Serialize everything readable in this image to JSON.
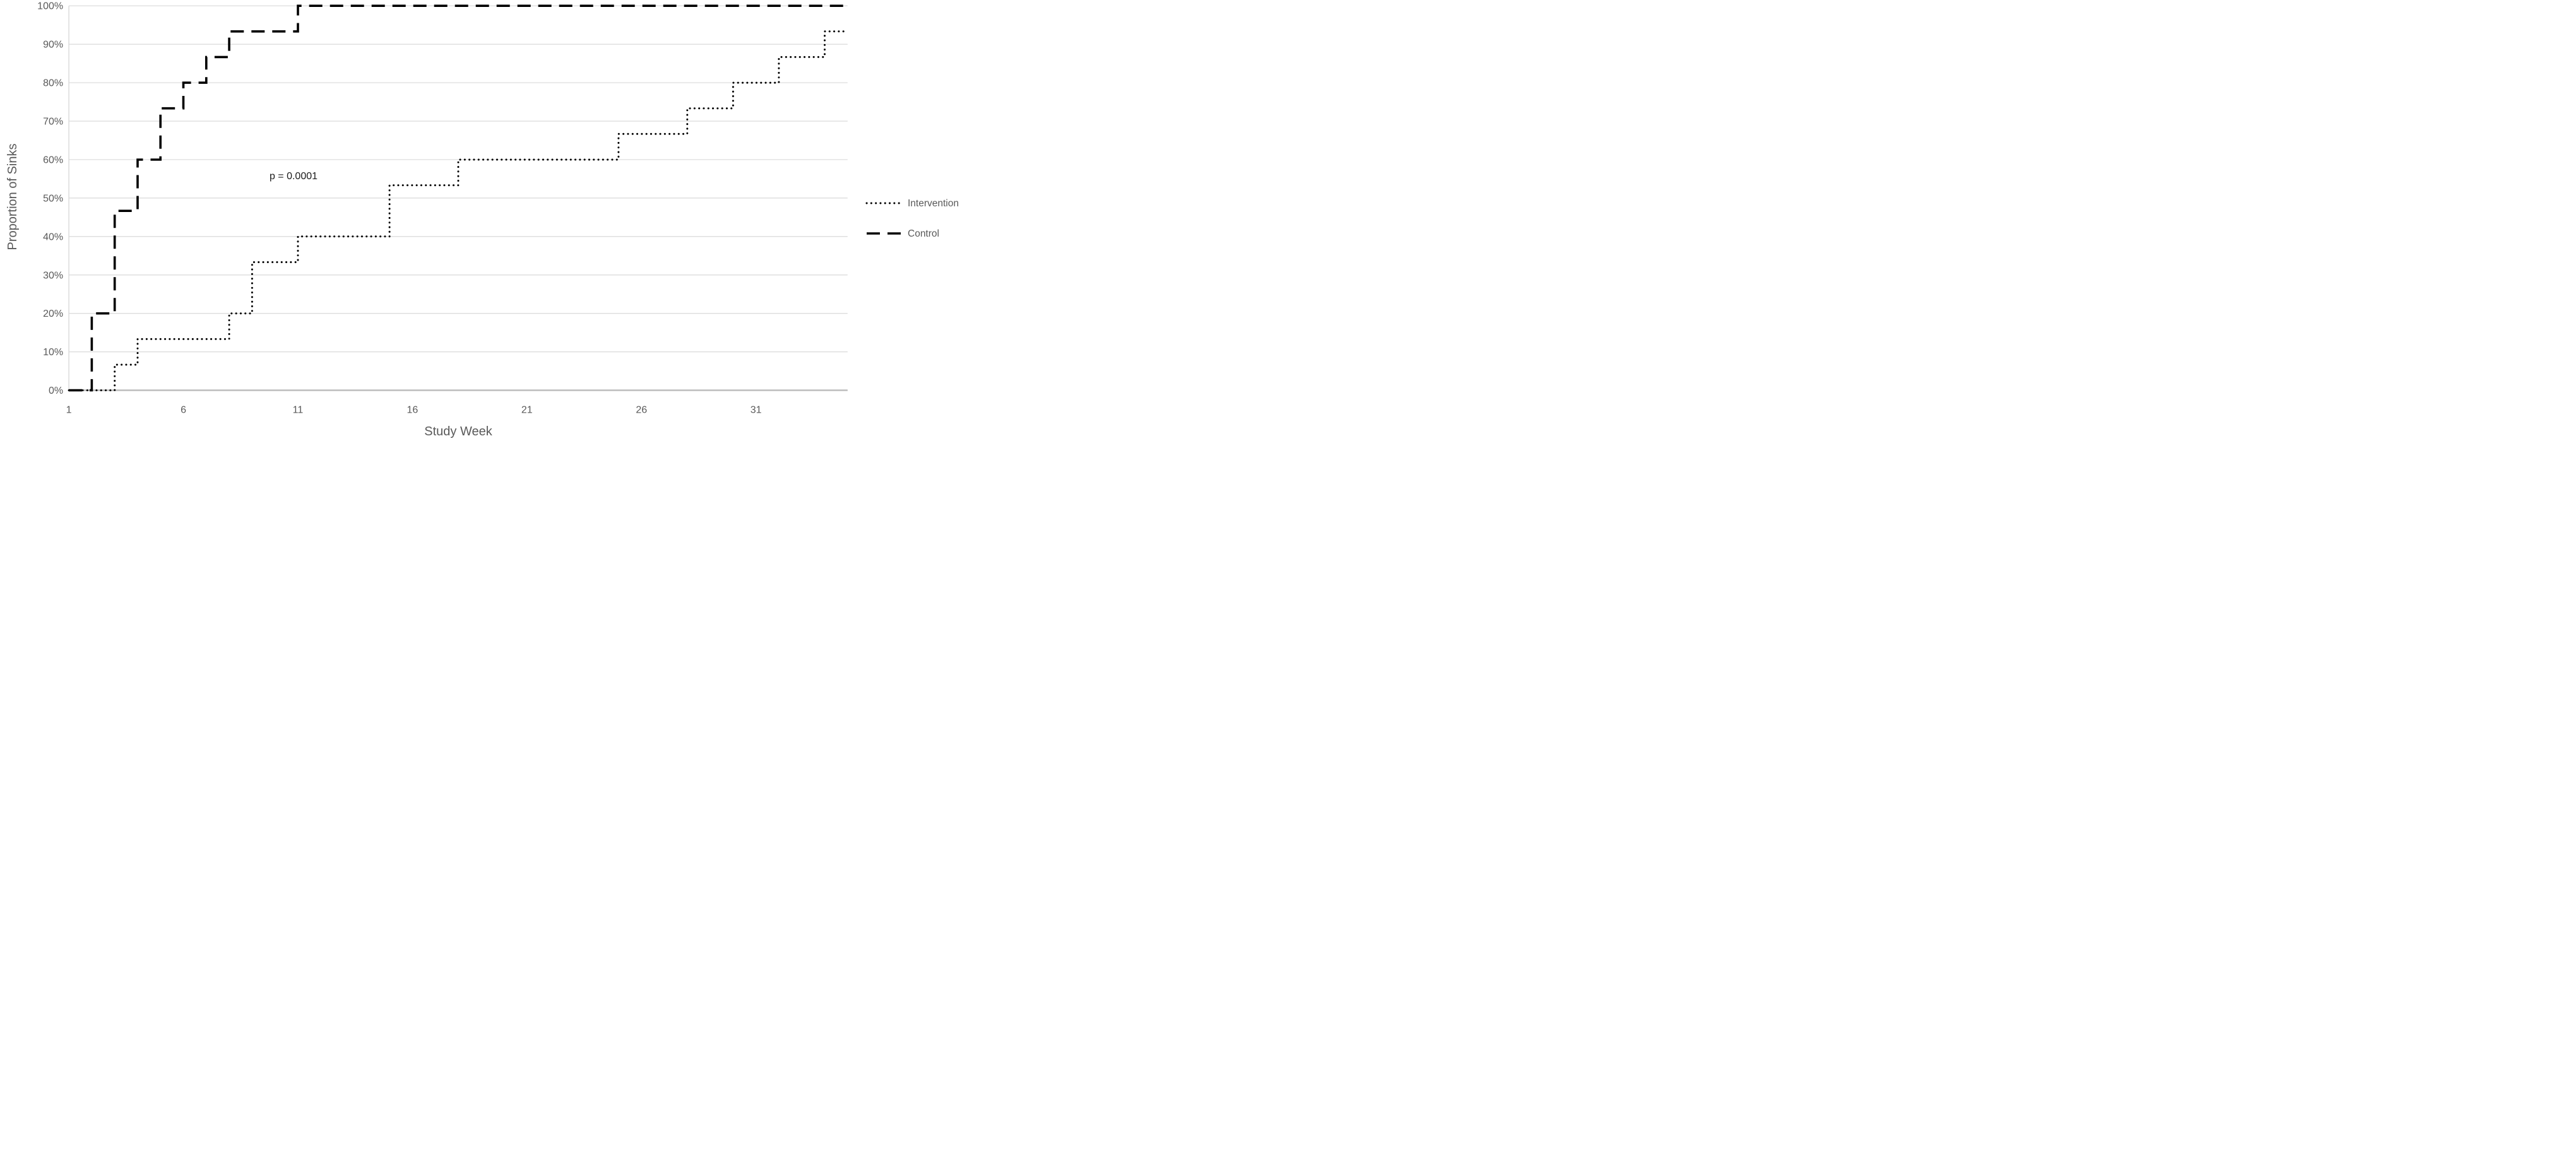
{
  "colors": {
    "background": "#ffffff",
    "series_line": "#000000",
    "axis_text": "#595959",
    "gridline": "#d9d9d9",
    "axis_line": "#c0c0c0",
    "plot_border": "#d9d9d9"
  },
  "chart_data": {
    "type": "line",
    "subtype": "step-after",
    "title": "",
    "xlabel": "Study Week",
    "ylabel": "Proportion of Sinks",
    "xlim": [
      1,
      35
    ],
    "x_ticks": [
      1,
      6,
      11,
      16,
      21,
      26,
      31
    ],
    "ylim_percent": [
      0,
      100
    ],
    "y_ticks_percent": [
      0,
      10,
      20,
      30,
      40,
      50,
      60,
      70,
      80,
      90,
      100
    ],
    "y_tick_suffix": "%",
    "grid": "horizontal-on",
    "legend_position": "right-middle",
    "annotation": {
      "text": "p = 0.0001",
      "x_week": 10.8,
      "y_percent": 55.5
    },
    "series": [
      {
        "name": "Intervention",
        "line_style": "dotted",
        "color": "#000000",
        "points_week_percent": [
          [
            1,
            0
          ],
          [
            3,
            6.67
          ],
          [
            4,
            13.33
          ],
          [
            8,
            20
          ],
          [
            9,
            33.33
          ],
          [
            11,
            40
          ],
          [
            15,
            53.33
          ],
          [
            18,
            60
          ],
          [
            25,
            66.67
          ],
          [
            28,
            73.33
          ],
          [
            30,
            80
          ],
          [
            32,
            86.67
          ],
          [
            34,
            93.33
          ],
          [
            35,
            93.33
          ]
        ]
      },
      {
        "name": "Control",
        "line_style": "dashed",
        "color": "#000000",
        "points_week_percent": [
          [
            1,
            0
          ],
          [
            2,
            20
          ],
          [
            3,
            46.67
          ],
          [
            4,
            60
          ],
          [
            5,
            73.33
          ],
          [
            6,
            80
          ],
          [
            7,
            86.67
          ],
          [
            8,
            93.33
          ],
          [
            11,
            100
          ],
          [
            35,
            100
          ]
        ]
      }
    ]
  }
}
